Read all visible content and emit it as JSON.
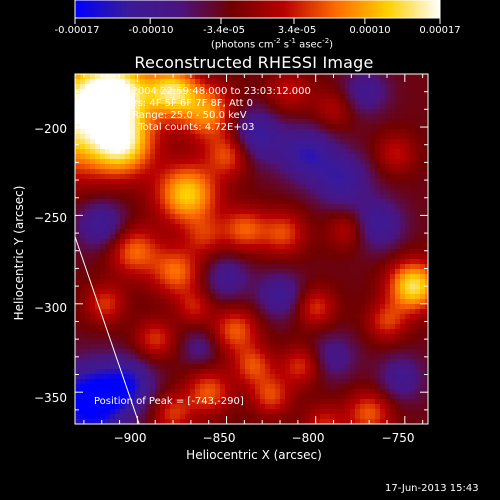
{
  "colorbar": {
    "tick_labels": [
      "-0.00017",
      "-0.00010",
      "-3.4e-05",
      "3.4e-05",
      "0.00010",
      "0.00017"
    ],
    "range": [
      -0.00017,
      0.00017
    ],
    "units_text": "(photons cm",
    "units_exp1": "-2",
    "units_mid": " s",
    "units_exp2": "-1",
    "units_mid2": " asec",
    "units_exp3": "-2",
    "units_end": ")",
    "colormap_stops": [
      "#0000ff",
      "#3a1a9a",
      "#4a1580",
      "#700000",
      "#b80000",
      "#ff6a00",
      "#ffd000",
      "#ffffff"
    ]
  },
  "chart_data": {
    "type": "heatmap",
    "title": "Reconstructed RHESSI Image",
    "xlabel": "Heliocentric X (arcsec)",
    "ylabel": "Heliocentric Y (arcsec)",
    "xlim": [
      -935,
      -737
    ],
    "ylim": [
      -368,
      -170
    ],
    "x_ticks": [
      -900,
      -850,
      -800,
      -750
    ],
    "y_ticks": [
      -200,
      -250,
      -300,
      -350
    ],
    "x_tick_labels": [
      "−900",
      "−850",
      "−800",
      "−750"
    ],
    "y_tick_labels": [
      "−200",
      "−250",
      "−300",
      "−350"
    ],
    "annotations": [
      "28-Oct-2004 22:59:48.000 to 23:03:12.000",
      "Detectors: 4F 5F 6F 7F 8F, Att 0",
      "Energy Range: 25.0 - 50.0 keV",
      "Clean     Total counts: 4.72E+03"
    ],
    "peak_label": "Position of Peak = [-743,-290]",
    "peak_position": [
      -743,
      -290
    ],
    "limb_line": [
      [
        -935,
        -262
      ],
      [
        -899,
        -368
      ]
    ],
    "grid": false,
    "field_blobs": [
      {
        "x": -935,
        "y": -195,
        "v": 1.0,
        "s": 22
      },
      {
        "x": -912,
        "y": -180,
        "v": 0.95,
        "s": 14
      },
      {
        "x": -908,
        "y": -210,
        "v": 0.8,
        "s": 12
      },
      {
        "x": -880,
        "y": -180,
        "v": 0.9,
        "s": 10
      },
      {
        "x": -860,
        "y": -192,
        "v": 0.7,
        "s": 11
      },
      {
        "x": -872,
        "y": -238,
        "v": 0.9,
        "s": 12
      },
      {
        "x": -848,
        "y": -215,
        "v": 0.6,
        "s": 9
      },
      {
        "x": -840,
        "y": -258,
        "v": 0.55,
        "s": 9
      },
      {
        "x": -902,
        "y": -270,
        "v": 0.6,
        "s": 10
      },
      {
        "x": -878,
        "y": -282,
        "v": 0.6,
        "s": 10
      },
      {
        "x": -862,
        "y": -262,
        "v": 0.35,
        "s": 8
      },
      {
        "x": -918,
        "y": -300,
        "v": 0.45,
        "s": 8
      },
      {
        "x": -890,
        "y": -320,
        "v": 0.45,
        "s": 8
      },
      {
        "x": -868,
        "y": -302,
        "v": 0.35,
        "s": 7
      },
      {
        "x": -845,
        "y": -315,
        "v": 0.55,
        "s": 9
      },
      {
        "x": -835,
        "y": -335,
        "v": 0.5,
        "s": 8
      },
      {
        "x": -860,
        "y": -350,
        "v": 0.55,
        "s": 9
      },
      {
        "x": -880,
        "y": -362,
        "v": 0.45,
        "s": 8
      },
      {
        "x": -825,
        "y": -352,
        "v": 0.5,
        "s": 8
      },
      {
        "x": -808,
        "y": -335,
        "v": 0.45,
        "s": 8
      },
      {
        "x": -800,
        "y": -302,
        "v": 0.45,
        "s": 8
      },
      {
        "x": -818,
        "y": -260,
        "v": 0.5,
        "s": 9
      },
      {
        "x": -815,
        "y": -180,
        "v": 0.35,
        "s": 9
      },
      {
        "x": -790,
        "y": -190,
        "v": 0.3,
        "s": 8
      },
      {
        "x": -782,
        "y": -258,
        "v": 0.35,
        "s": 8
      },
      {
        "x": -770,
        "y": -362,
        "v": 0.55,
        "s": 9
      },
      {
        "x": -795,
        "y": -368,
        "v": 0.4,
        "s": 8
      },
      {
        "x": -745,
        "y": -290,
        "v": 1.0,
        "s": 10
      },
      {
        "x": -760,
        "y": -310,
        "v": 0.45,
        "s": 8
      },
      {
        "x": -755,
        "y": -215,
        "v": 0.35,
        "s": 8
      },
      {
        "x": -926,
        "y": -355,
        "v": -1.0,
        "s": 14
      },
      {
        "x": -905,
        "y": -345,
        "v": -0.55,
        "s": 10
      },
      {
        "x": -920,
        "y": -255,
        "v": -0.5,
        "s": 10
      },
      {
        "x": -835,
        "y": -205,
        "v": -0.6,
        "s": 11
      },
      {
        "x": -805,
        "y": -215,
        "v": -0.55,
        "s": 11
      },
      {
        "x": -785,
        "y": -230,
        "v": -0.5,
        "s": 11
      },
      {
        "x": -765,
        "y": -255,
        "v": -0.5,
        "s": 10
      },
      {
        "x": -850,
        "y": -285,
        "v": -0.4,
        "s": 9
      },
      {
        "x": -820,
        "y": -295,
        "v": -0.45,
        "s": 9
      },
      {
        "x": -790,
        "y": -330,
        "v": -0.35,
        "s": 9
      },
      {
        "x": -752,
        "y": -342,
        "v": -0.4,
        "s": 9
      },
      {
        "x": -865,
        "y": -325,
        "v": -0.3,
        "s": 7
      },
      {
        "x": -772,
        "y": -180,
        "v": -0.4,
        "s": 9
      }
    ]
  },
  "footer": {
    "timestamp": "17-Jun-2013 15:43"
  }
}
